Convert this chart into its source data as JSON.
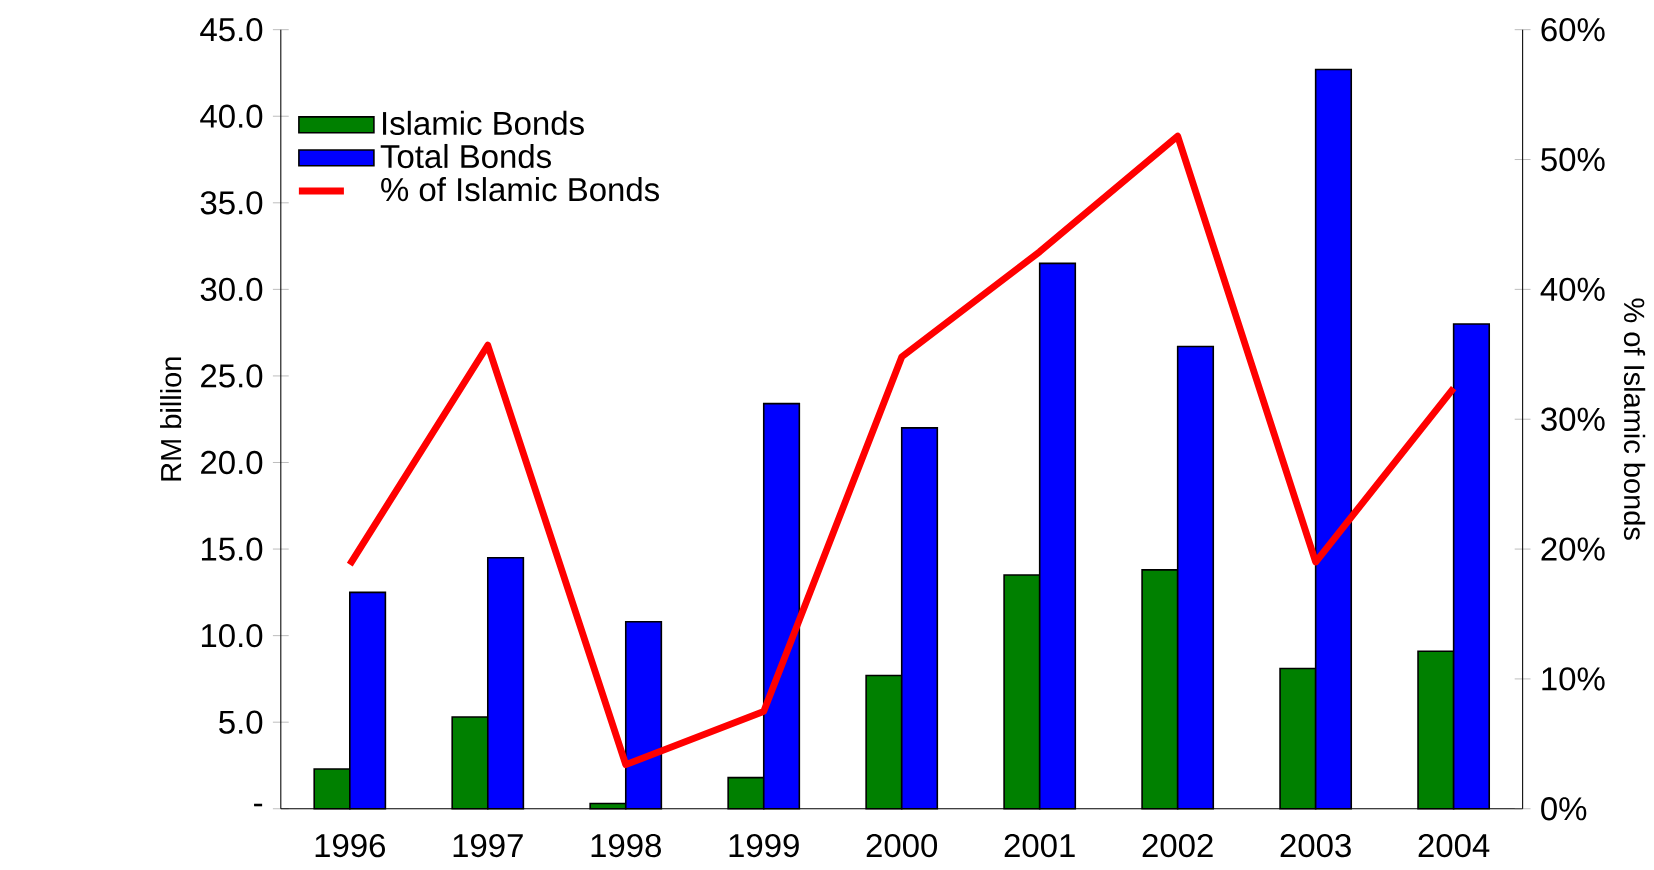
{
  "chart_data": {
    "type": "bar",
    "categories": [
      "1996",
      "1997",
      "1998",
      "1999",
      "2000",
      "2001",
      "2002",
      "2003",
      "2004"
    ],
    "series": [
      {
        "name": "Islamic Bonds",
        "color": "#008000",
        "values": [
          2.3,
          5.3,
          0.3,
          1.8,
          7.7,
          13.5,
          13.8,
          8.1,
          9.1
        ]
      },
      {
        "name": "Total Bonds",
        "color": "#0000ff",
        "values": [
          12.5,
          14.5,
          10.8,
          23.4,
          22.0,
          31.5,
          26.7,
          42.7,
          28.0
        ]
      },
      {
        "name": "% of Islamic Bonds",
        "type": "line",
        "axis": "y2",
        "color": "#ff0000",
        "values": [
          18.8,
          35.7,
          3.4,
          7.5,
          34.8,
          42.9,
          51.8,
          19.0,
          32.4
        ]
      }
    ],
    "ylabel": "RM billion",
    "y2label": "% of Islamic bonds",
    "ylim": [
      0,
      45
    ],
    "yticks": [
      {
        "value": 0,
        "label": "-"
      },
      {
        "value": 5,
        "label": "5.0"
      },
      {
        "value": 10,
        "label": "10.0"
      },
      {
        "value": 15,
        "label": "15.0"
      },
      {
        "value": 20,
        "label": "20.0"
      },
      {
        "value": 25,
        "label": "25.0"
      },
      {
        "value": 30,
        "label": "30.0"
      },
      {
        "value": 35,
        "label": "35.0"
      },
      {
        "value": 40,
        "label": "40.0"
      },
      {
        "value": 45,
        "label": "45.0"
      }
    ],
    "y2lim": [
      0,
      60
    ],
    "y2ticks": [
      {
        "value": 0,
        "label": "0%"
      },
      {
        "value": 10,
        "label": "10%"
      },
      {
        "value": 20,
        "label": "20%"
      },
      {
        "value": 30,
        "label": "30%"
      },
      {
        "value": 40,
        "label": "40%"
      },
      {
        "value": 50,
        "label": "50%"
      },
      {
        "value": 60,
        "label": "60%"
      }
    ],
    "legend": "top left",
    "grid": false,
    "marker": "none"
  }
}
